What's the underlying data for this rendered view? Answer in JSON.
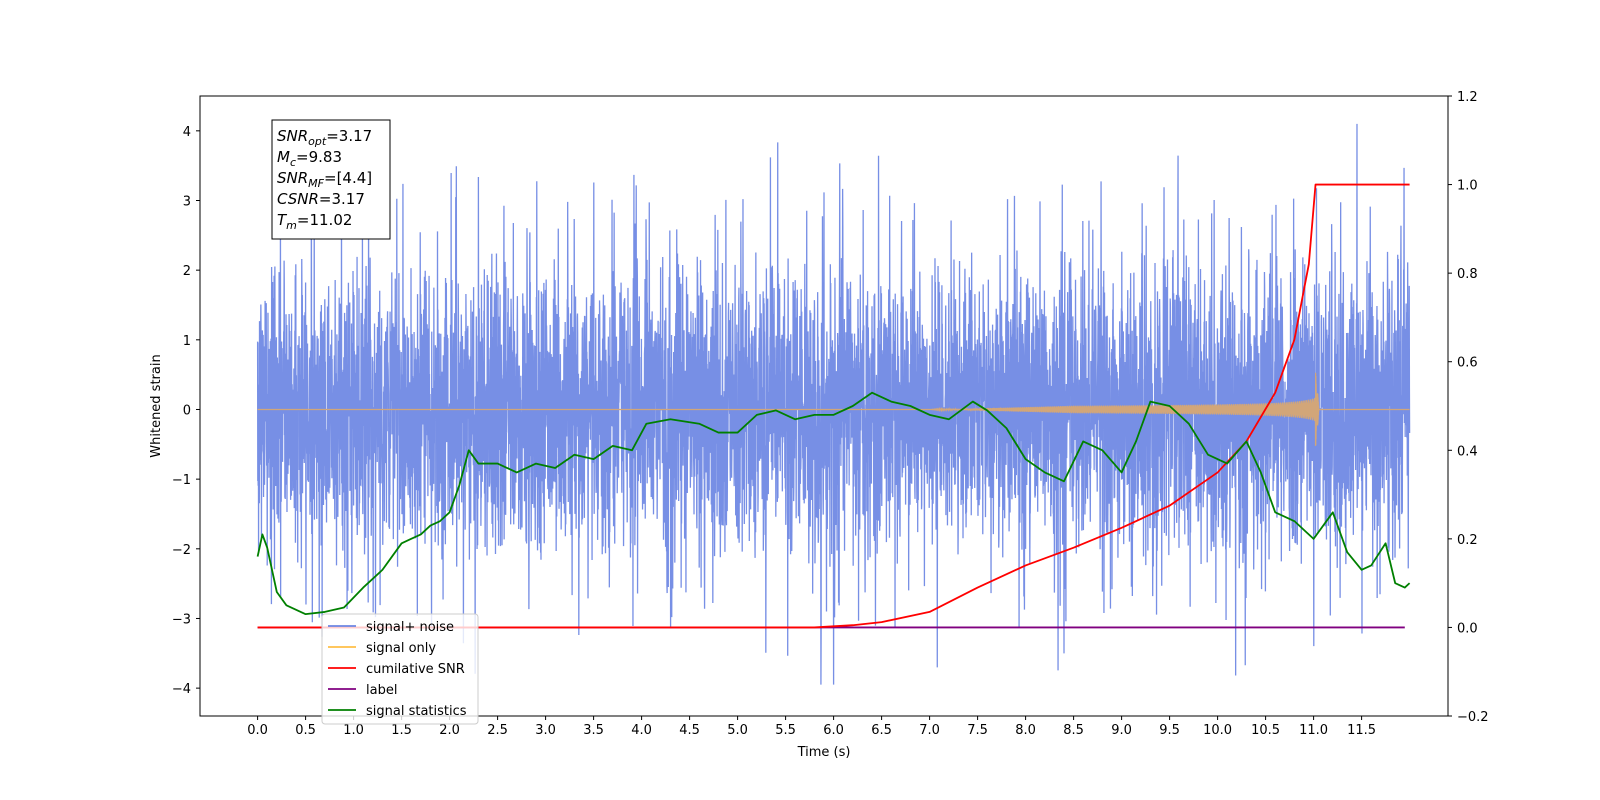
{
  "chart_data": {
    "type": "line",
    "xlabel": "Time (s)",
    "ylabel": "Whitened strain",
    "xlim": [
      -0.6,
      12.4
    ],
    "ylim": [
      -4.4,
      4.5
    ],
    "y2lim": [
      -0.2,
      1.2
    ],
    "x_ticks": [
      "0.0",
      "0.5",
      "1.0",
      "1.5",
      "2.0",
      "2.5",
      "3.0",
      "3.5",
      "4.0",
      "4.5",
      "5.0",
      "5.5",
      "6.0",
      "6.5",
      "7.0",
      "7.5",
      "8.0",
      "8.5",
      "9.0",
      "9.5",
      "10.0",
      "10.5",
      "11.0",
      "11.5"
    ],
    "y_ticks": [
      "4",
      "3",
      "2",
      "1",
      "0",
      "−1",
      "−2",
      "−3",
      "−4"
    ],
    "y2_ticks": [
      "1.2",
      "1.0",
      "0.8",
      "0.6",
      "0.4",
      "0.2",
      "0.0",
      "−0.2"
    ],
    "info_box": [
      {
        "base": "SNR",
        "sub": "opt",
        "value": "=3.17"
      },
      {
        "base": "M",
        "sub": "c",
        "value": "=9.83"
      },
      {
        "base": "SNR",
        "sub": "MF",
        "value": "=[4.4]"
      },
      {
        "base": "CSNR",
        "sub": "",
        "value": "=3.17"
      },
      {
        "base": "T",
        "sub": "m",
        "value": "=11.02"
      }
    ],
    "legend": {
      "placement": "lower-left",
      "entries": [
        {
          "label": "signal+ noise",
          "color": "#6b86e3"
        },
        {
          "label": "signal only",
          "color": "#ffbf47"
        },
        {
          "label": "cumilative SNR",
          "color": "#ff0000"
        },
        {
          "label": "label",
          "color": "#800080"
        },
        {
          "label": "signal statistics",
          "color": "#008000"
        }
      ]
    },
    "series": [
      {
        "name": "signal+ noise",
        "axis": "left",
        "color": "#6b86e3",
        "noise_std": 1.0,
        "x_range": [
          0,
          12
        ]
      },
      {
        "name": "signal only",
        "axis": "left",
        "color": "#d2a679",
        "merger_time": 11.02,
        "peak_amplitude": 0.55
      },
      {
        "name": "cumilative SNR",
        "axis": "right",
        "color": "#ff0000",
        "points": [
          [
            0,
            0
          ],
          [
            5.8,
            0
          ],
          [
            6.2,
            0.005
          ],
          [
            6.5,
            0.012
          ],
          [
            7.0,
            0.035
          ],
          [
            7.5,
            0.09
          ],
          [
            8.0,
            0.14
          ],
          [
            8.5,
            0.18
          ],
          [
            9.0,
            0.225
          ],
          [
            9.5,
            0.275
          ],
          [
            10.0,
            0.35
          ],
          [
            10.3,
            0.42
          ],
          [
            10.6,
            0.53
          ],
          [
            10.8,
            0.65
          ],
          [
            10.95,
            0.82
          ],
          [
            11.02,
            1.0
          ],
          [
            12.0,
            1.0
          ]
        ]
      },
      {
        "name": "label",
        "axis": "right",
        "color": "#800080",
        "points": [
          [
            0,
            0
          ],
          [
            11.95,
            0
          ]
        ]
      },
      {
        "name": "signal statistics",
        "axis": "right",
        "color": "#008000",
        "points": [
          [
            0,
            0.16
          ],
          [
            0.05,
            0.21
          ],
          [
            0.1,
            0.18
          ],
          [
            0.2,
            0.08
          ],
          [
            0.3,
            0.05
          ],
          [
            0.5,
            0.03
          ],
          [
            0.7,
            0.035
          ],
          [
            0.9,
            0.045
          ],
          [
            1.1,
            0.09
          ],
          [
            1.3,
            0.13
          ],
          [
            1.4,
            0.16
          ],
          [
            1.5,
            0.19
          ],
          [
            1.6,
            0.2
          ],
          [
            1.7,
            0.21
          ],
          [
            1.8,
            0.23
          ],
          [
            1.9,
            0.24
          ],
          [
            2.0,
            0.26
          ],
          [
            2.1,
            0.32
          ],
          [
            2.2,
            0.4
          ],
          [
            2.3,
            0.37
          ],
          [
            2.5,
            0.37
          ],
          [
            2.7,
            0.35
          ],
          [
            2.9,
            0.37
          ],
          [
            3.1,
            0.36
          ],
          [
            3.3,
            0.39
          ],
          [
            3.5,
            0.38
          ],
          [
            3.7,
            0.41
          ],
          [
            3.9,
            0.4
          ],
          [
            4.05,
            0.46
          ],
          [
            4.3,
            0.47
          ],
          [
            4.6,
            0.46
          ],
          [
            4.8,
            0.44
          ],
          [
            5.0,
            0.44
          ],
          [
            5.2,
            0.48
          ],
          [
            5.4,
            0.49
          ],
          [
            5.6,
            0.47
          ],
          [
            5.8,
            0.48
          ],
          [
            6.0,
            0.48
          ],
          [
            6.2,
            0.5
          ],
          [
            6.4,
            0.53
          ],
          [
            6.6,
            0.51
          ],
          [
            6.8,
            0.5
          ],
          [
            7.0,
            0.48
          ],
          [
            7.2,
            0.47
          ],
          [
            7.45,
            0.51
          ],
          [
            7.6,
            0.49
          ],
          [
            7.8,
            0.45
          ],
          [
            8.0,
            0.38
          ],
          [
            8.2,
            0.35
          ],
          [
            8.4,
            0.33
          ],
          [
            8.6,
            0.42
          ],
          [
            8.8,
            0.4
          ],
          [
            9.0,
            0.35
          ],
          [
            9.15,
            0.42
          ],
          [
            9.3,
            0.51
          ],
          [
            9.5,
            0.5
          ],
          [
            9.7,
            0.46
          ],
          [
            9.9,
            0.39
          ],
          [
            10.1,
            0.37
          ],
          [
            10.3,
            0.42
          ],
          [
            10.45,
            0.35
          ],
          [
            10.6,
            0.26
          ],
          [
            10.8,
            0.24
          ],
          [
            11.0,
            0.2
          ],
          [
            11.2,
            0.26
          ],
          [
            11.35,
            0.17
          ],
          [
            11.5,
            0.13
          ],
          [
            11.6,
            0.14
          ],
          [
            11.75,
            0.19
          ],
          [
            11.85,
            0.1
          ],
          [
            11.95,
            0.09
          ],
          [
            12.0,
            0.1
          ]
        ]
      }
    ]
  }
}
